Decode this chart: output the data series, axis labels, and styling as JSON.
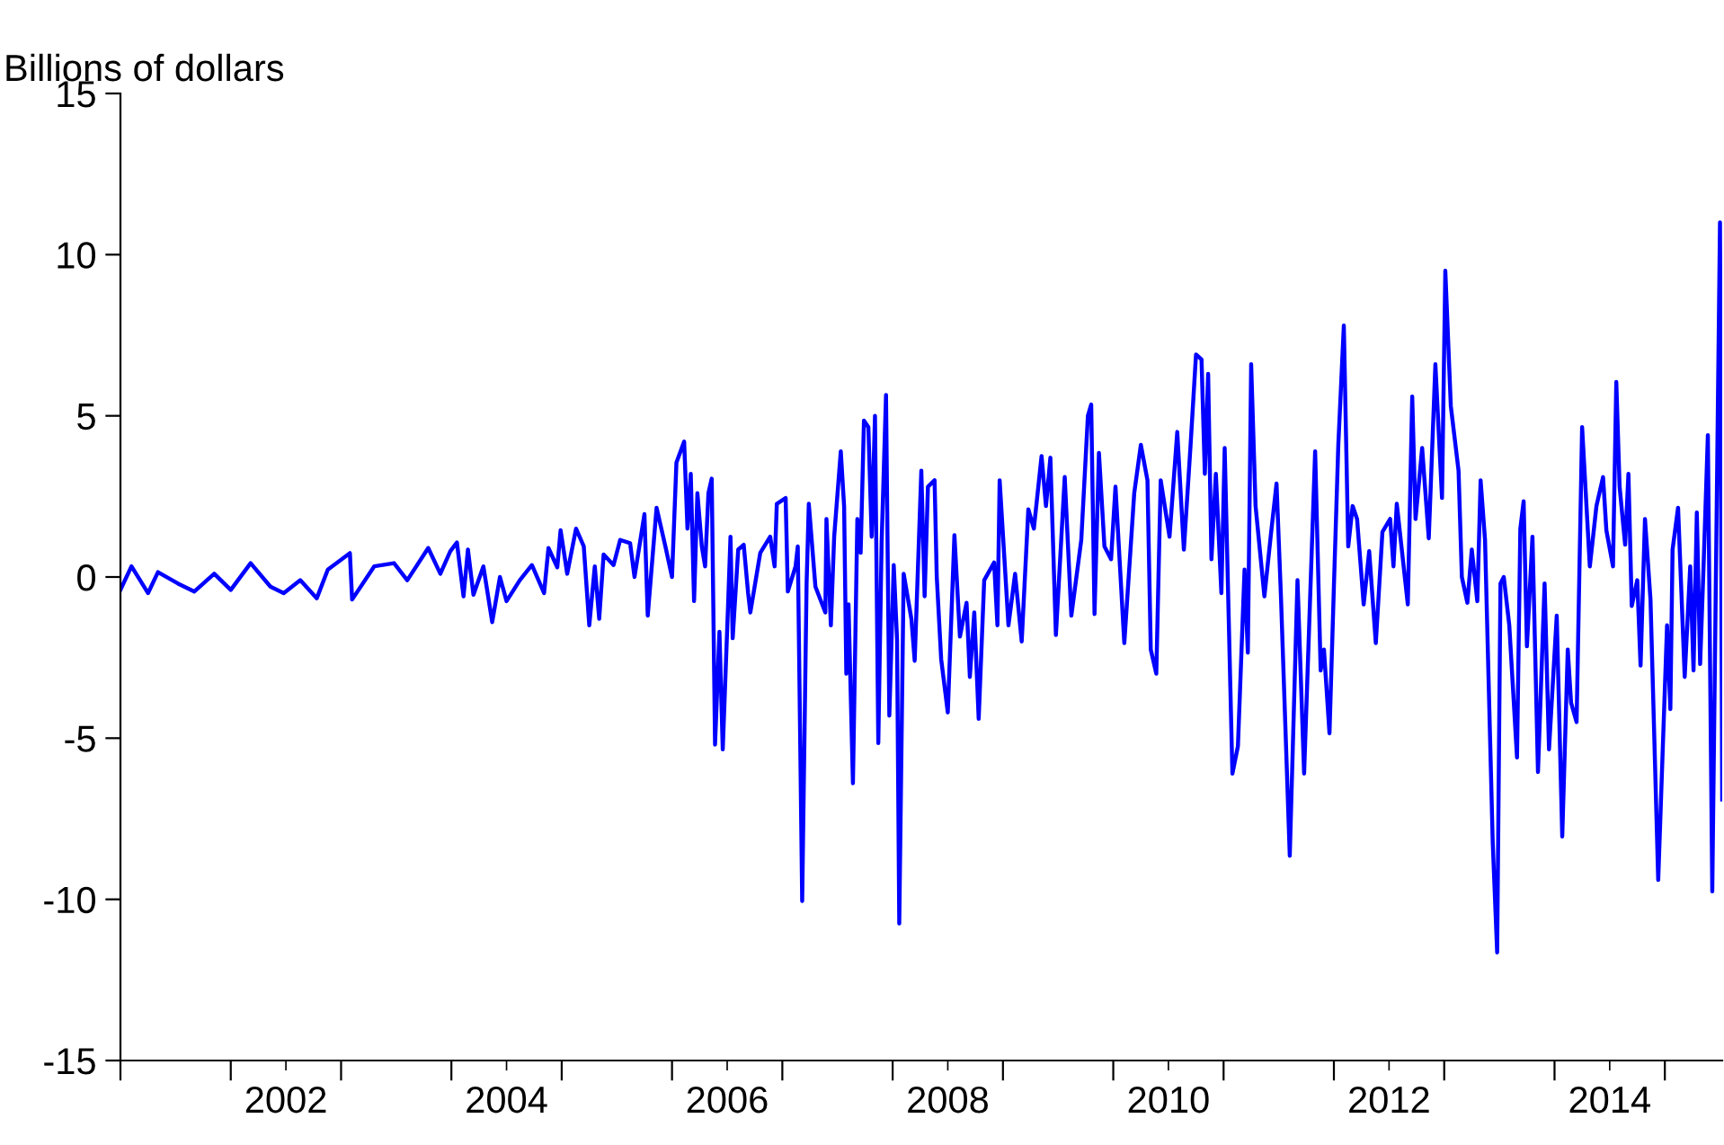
{
  "chart_data": {
    "type": "line",
    "ylabel": "Billions of dollars",
    "xlim": [
      2001,
      2015.52
    ],
    "ylim": [
      -15,
      15
    ],
    "yticks": [
      -15,
      -10,
      -5,
      0,
      5,
      10,
      15
    ],
    "xticks": [
      {
        "value": 2001,
        "label": null
      },
      {
        "value": 2002,
        "label": null
      },
      {
        "value": 2002.5,
        "label": "2002"
      },
      {
        "value": 2003,
        "label": null
      },
      {
        "value": 2004,
        "label": null
      },
      {
        "value": 2004.5,
        "label": "2004"
      },
      {
        "value": 2005,
        "label": null
      },
      {
        "value": 2006,
        "label": null
      },
      {
        "value": 2006.5,
        "label": "2006"
      },
      {
        "value": 2007,
        "label": null
      },
      {
        "value": 2008,
        "label": null
      },
      {
        "value": 2008.5,
        "label": "2008"
      },
      {
        "value": 2009,
        "label": null
      },
      {
        "value": 2010,
        "label": null
      },
      {
        "value": 2010.5,
        "label": "2010"
      },
      {
        "value": 2011,
        "label": null
      },
      {
        "value": 2012,
        "label": null
      },
      {
        "value": 2012.5,
        "label": "2012"
      },
      {
        "value": 2013,
        "label": null
      },
      {
        "value": 2014,
        "label": null
      },
      {
        "value": 2014.5,
        "label": "2014"
      },
      {
        "value": 2015,
        "label": null
      }
    ],
    "grid": false,
    "marker": "none",
    "line_style": "solid",
    "series": [
      {
        "color": "#0000ff",
        "x": [
          2001.0,
          2001.1,
          2001.25,
          2001.34,
          2001.52,
          2001.67,
          2001.85,
          2002.0,
          2002.18,
          2002.36,
          2002.48,
          2002.63,
          2002.78,
          2002.88,
          2003.08,
          2003.1,
          2003.3,
          2003.48,
          2003.6,
          2003.79,
          2003.9,
          2003.99,
          2004.05,
          2004.11,
          2004.15,
          2004.2,
          2004.29,
          2004.37,
          2004.44,
          2004.5,
          2004.62,
          2004.73,
          2004.84,
          2004.88,
          2004.96,
          2004.99,
          2005.05,
          2005.13,
          2005.2,
          2005.25,
          2005.3,
          2005.34,
          2005.38,
          2005.47,
          2005.53,
          2005.62,
          2005.66,
          2005.75,
          2005.78,
          2005.86,
          2005.94,
          2006.0,
          2006.04,
          2006.11,
          2006.14,
          2006.17,
          2006.2,
          2006.23,
          2006.27,
          2006.3,
          2006.33,
          2006.36,
          2006.39,
          2006.43,
          2006.46,
          2006.51,
          2006.53,
          2006.55,
          2006.6,
          2006.65,
          2006.69,
          2006.71,
          2006.8,
          2006.89,
          2006.93,
          2006.95,
          2007.03,
          2007.05,
          2007.12,
          2007.14,
          2007.18,
          2007.22,
          2007.24,
          2007.3,
          2007.39,
          2007.4,
          2007.44,
          2007.47,
          2007.53,
          2007.56,
          2007.58,
          2007.6,
          2007.64,
          2007.68,
          2007.71,
          2007.74,
          2007.78,
          2007.81,
          2007.84,
          2007.87,
          2007.9,
          2007.94,
          2007.97,
          2008.01,
          2008.04,
          2008.06,
          2008.1,
          2008.17,
          2008.2,
          2008.26,
          2008.29,
          2008.32,
          2008.38,
          2008.4,
          2008.44,
          2008.5,
          2008.56,
          2008.61,
          2008.67,
          2008.7,
          2008.74,
          2008.78,
          2008.83,
          2008.92,
          2008.95,
          2008.97,
          2009.05,
          2009.11,
          2009.17,
          2009.23,
          2009.28,
          2009.35,
          2009.39,
          2009.43,
          2009.48,
          2009.56,
          2009.62,
          2009.71,
          2009.77,
          2009.8,
          2009.83,
          2009.87,
          2009.92,
          2009.98,
          2010.02,
          2010.1,
          2010.19,
          2010.25,
          2010.31,
          2010.34,
          2010.39,
          2010.43,
          2010.51,
          2010.58,
          2010.64,
          2010.7,
          2010.75,
          2010.8,
          2010.83,
          2010.86,
          2010.89,
          2010.93,
          2010.98,
          2011.01,
          2011.08,
          2011.13,
          2011.19,
          2011.22,
          2011.25,
          2011.29,
          2011.37,
          2011.43,
          2011.48,
          2011.52,
          2011.6,
          2011.67,
          2011.73,
          2011.83,
          2011.88,
          2011.91,
          2011.96,
          2012.0,
          2012.04,
          2012.09,
          2012.13,
          2012.17,
          2012.21,
          2012.27,
          2012.32,
          2012.38,
          2012.44,
          2012.51,
          2012.54,
          2012.57,
          2012.67,
          2012.71,
          2012.74,
          2012.8,
          2012.86,
          2012.92,
          2012.98,
          2013.01,
          2013.06,
          2013.13,
          2013.16,
          2013.21,
          2013.25,
          2013.3,
          2013.33,
          2013.37,
          2013.44,
          2013.48,
          2013.51,
          2013.54,
          2013.59,
          2013.66,
          2013.69,
          2013.72,
          2013.75,
          2013.8,
          2013.85,
          2013.91,
          2013.95,
          2014.02,
          2014.07,
          2014.12,
          2014.15,
          2014.2,
          2014.25,
          2014.32,
          2014.38,
          2014.44,
          2014.47,
          2014.53,
          2014.56,
          2014.59,
          2014.64,
          2014.67,
          2014.7,
          2014.75,
          2014.78,
          2014.82,
          2014.87,
          2014.94,
          2015.02,
          2015.05,
          2015.07,
          2015.12,
          2015.18,
          2015.23,
          2015.26,
          2015.29,
          2015.32,
          2015.35,
          2015.39,
          2015.43,
          2015.5,
          2015.52
        ],
        "values": [
          -0.4,
          0.33,
          -0.5,
          0.15,
          -0.2,
          -0.45,
          0.1,
          -0.4,
          0.43,
          -0.3,
          -0.5,
          -0.1,
          -0.66,
          0.23,
          0.74,
          -0.7,
          0.33,
          0.43,
          -0.1,
          0.9,
          0.1,
          0.8,
          1.07,
          -0.6,
          0.85,
          -0.55,
          0.33,
          -1.4,
          0.0,
          -0.75,
          -0.1,
          0.37,
          -0.5,
          0.9,
          0.3,
          1.45,
          0.1,
          1.5,
          0.95,
          -1.5,
          0.33,
          -1.3,
          0.7,
          0.37,
          1.15,
          1.05,
          0.0,
          1.95,
          -1.2,
          2.15,
          0.95,
          0.0,
          3.55,
          4.2,
          1.5,
          3.2,
          -0.75,
          2.6,
          0.95,
          0.33,
          2.6,
          3.05,
          -5.2,
          -1.7,
          -5.35,
          -0.7,
          1.25,
          -1.9,
          0.85,
          1.0,
          -0.5,
          -1.1,
          0.75,
          1.25,
          0.33,
          2.27,
          2.45,
          -0.45,
          0.33,
          0.95,
          -10.05,
          -0.2,
          2.27,
          -0.3,
          -1.1,
          1.8,
          -1.5,
          1.25,
          3.9,
          2.2,
          -3.0,
          -0.85,
          -6.4,
          1.8,
          0.75,
          4.85,
          4.65,
          1.25,
          5.0,
          -5.15,
          1.05,
          5.65,
          -4.3,
          0.37,
          -1.95,
          -10.75,
          0.1,
          -1.3,
          -2.6,
          3.3,
          -0.6,
          2.8,
          3.0,
          0.0,
          -2.55,
          -4.2,
          1.3,
          -1.85,
          -0.8,
          -3.1,
          -1.1,
          -4.4,
          -0.1,
          0.45,
          -1.5,
          3.0,
          -1.5,
          0.1,
          -2.0,
          2.1,
          1.5,
          3.75,
          2.2,
          3.7,
          -1.8,
          3.1,
          -1.2,
          1.15,
          5.0,
          5.35,
          -1.15,
          3.85,
          0.95,
          0.55,
          2.8,
          -2.05,
          2.6,
          4.1,
          3.0,
          -2.25,
          -3.0,
          3.0,
          1.25,
          4.5,
          0.85,
          4.05,
          6.9,
          6.75,
          3.2,
          6.3,
          0.55,
          3.2,
          -0.5,
          4.0,
          -6.1,
          -5.25,
          0.23,
          -2.35,
          6.6,
          2.2,
          -0.6,
          1.35,
          2.9,
          -0.6,
          -8.65,
          -0.1,
          -6.1,
          3.9,
          -2.9,
          -2.25,
          -4.85,
          -0.3,
          4.1,
          7.8,
          0.95,
          2.2,
          1.8,
          -0.85,
          0.8,
          -2.05,
          1.4,
          1.8,
          0.33,
          2.27,
          -0.85,
          5.6,
          1.8,
          4.0,
          1.2,
          6.6,
          2.45,
          9.5,
          5.3,
          3.3,
          0.0,
          -0.8,
          0.85,
          -0.75,
          3.0,
          1.15,
          -8.25,
          -11.65,
          -0.2,
          0.0,
          -1.5,
          -5.6,
          1.5,
          2.35,
          -2.15,
          1.25,
          -6.05,
          -0.2,
          -5.35,
          -1.2,
          -8.05,
          -2.25,
          -3.9,
          -4.5,
          4.65,
          0.33,
          2.2,
          3.1,
          1.45,
          0.33,
          6.05,
          2.8,
          1.0,
          3.2,
          -0.9,
          -0.1,
          -2.75,
          1.8,
          -0.7,
          -9.4,
          -1.5,
          -4.1,
          0.85,
          2.15,
          -3.1,
          0.33,
          -2.9,
          2.0,
          -2.7,
          0.23,
          4.4,
          -9.75,
          11.0,
          -6.9
        ]
      }
    ]
  }
}
